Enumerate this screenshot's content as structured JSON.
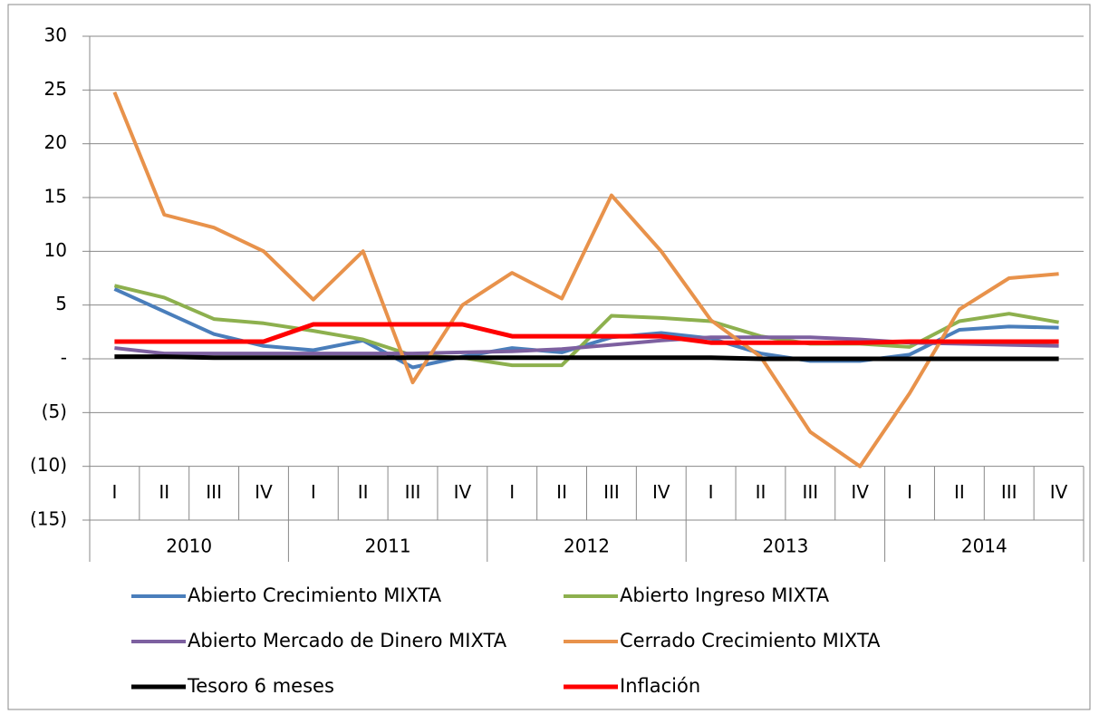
{
  "chart_data": {
    "type": "line",
    "categories": [
      "I",
      "II",
      "III",
      "IV",
      "I",
      "II",
      "III",
      "IV",
      "I",
      "II",
      "III",
      "IV",
      "I",
      "II",
      "III",
      "IV",
      "I",
      "II",
      "III",
      "IV"
    ],
    "category_groups": [
      "2010",
      "2011",
      "2012",
      "2013",
      "2014"
    ],
    "series": [
      {
        "name": "Abierto Crecimiento MIXTA",
        "color": "#4a7ebb",
        "values": [
          6.5,
          4.4,
          2.3,
          1.2,
          0.8,
          1.7,
          -0.8,
          0.2,
          1.0,
          0.6,
          2.0,
          2.4,
          1.9,
          0.5,
          -0.2,
          -0.2,
          0.4,
          2.7,
          3.0,
          2.9
        ]
      },
      {
        "name": "Abierto Ingreso MIXTA",
        "color": "#8db04e",
        "values": [
          6.8,
          5.7,
          3.7,
          3.3,
          2.6,
          1.8,
          0.3,
          0.1,
          -0.6,
          -0.6,
          4.0,
          3.8,
          3.5,
          2.1,
          1.4,
          1.4,
          1.1,
          3.5,
          4.2,
          3.4
        ]
      },
      {
        "name": "Abierto Mercado de Dinero MIXTA",
        "color": "#7d60a0",
        "values": [
          1.0,
          0.5,
          0.5,
          0.5,
          0.5,
          0.5,
          0.5,
          0.6,
          0.7,
          0.9,
          1.3,
          1.7,
          2.0,
          2.0,
          2.0,
          1.8,
          1.5,
          1.4,
          1.3,
          1.2
        ]
      },
      {
        "name": "Cerrado Crecimiento MIXTA",
        "color": "#e8924b",
        "values": [
          24.8,
          13.4,
          12.2,
          10.0,
          5.5,
          10.0,
          -2.2,
          5.0,
          8.0,
          5.6,
          15.2,
          10.0,
          3.6,
          0.2,
          -6.8,
          -10.0,
          -3.2,
          4.6,
          7.5,
          7.9
        ]
      },
      {
        "name": "Tesoro 6 meses",
        "color": "#000000",
        "values": [
          0.2,
          0.2,
          0.1,
          0.1,
          0.1,
          0.1,
          0.1,
          0.1,
          0.1,
          0.1,
          0.1,
          0.1,
          0.1,
          0.0,
          0.0,
          0.0,
          0.0,
          0.0,
          0.0,
          0.0
        ]
      },
      {
        "name": "Inflación",
        "color": "#ff0000",
        "values": [
          1.6,
          1.6,
          1.6,
          1.6,
          3.2,
          3.2,
          3.2,
          3.2,
          2.1,
          2.1,
          2.1,
          2.1,
          1.5,
          1.5,
          1.5,
          1.5,
          1.6,
          1.6,
          1.6,
          1.6
        ]
      }
    ],
    "ylim": [
      -15,
      30
    ],
    "yticks": [
      {
        "value": -15,
        "label": "(15)"
      },
      {
        "value": -10,
        "label": "(10)"
      },
      {
        "value": -5,
        "label": "(5)"
      },
      {
        "value": 0,
        "label": "-"
      },
      5,
      10,
      15,
      20,
      25,
      30
    ],
    "grid": true,
    "legend": "bottom"
  }
}
